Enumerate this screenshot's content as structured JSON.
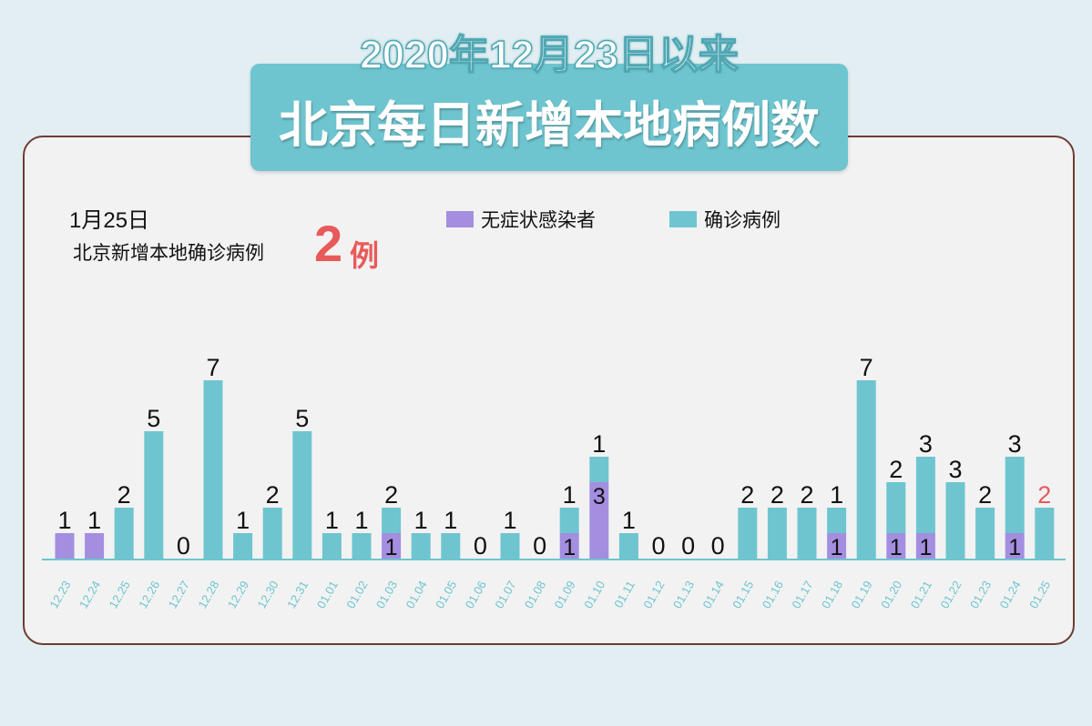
{
  "title": {
    "line1": "2020年12月23日以来",
    "line2": "北京每日新增本地病例数"
  },
  "info": {
    "date": "1月25日",
    "desc": "北京新增本地确诊病例",
    "number": "2",
    "unit": "例"
  },
  "colors": {
    "asymptomatic": "#a48ee0",
    "confirmed": "#6ec5cf",
    "highlight": "#e85a5a",
    "axis_label": "#6ec5cf"
  },
  "chart_data": {
    "type": "bar",
    "stacked": true,
    "categories": [
      "12.23",
      "12.24",
      "12.25",
      "12.26",
      "12.27",
      "12.28",
      "12.29",
      "12.30",
      "12.31",
      "01.01",
      "01.02",
      "01.03",
      "01.04",
      "01.05",
      "01.06",
      "01.07",
      "01.08",
      "01.09",
      "01.10",
      "01.11",
      "01.12",
      "01.13",
      "01.14",
      "01.15",
      "01.16",
      "01.17",
      "01.18",
      "01.19",
      "01.20",
      "01.21",
      "01.22",
      "01.23",
      "01.24",
      "01.25"
    ],
    "series": [
      {
        "name": "无症状感染者",
        "values": [
          1,
          1,
          0,
          0,
          0,
          0,
          0,
          0,
          0,
          0,
          0,
          1,
          0,
          0,
          0,
          0,
          0,
          1,
          3,
          0,
          0,
          0,
          0,
          0,
          0,
          0,
          1,
          0,
          1,
          1,
          0,
          0,
          1,
          0
        ]
      },
      {
        "name": "确诊病例",
        "values": [
          0,
          0,
          2,
          5,
          0,
          7,
          1,
          2,
          5,
          1,
          1,
          1,
          1,
          1,
          0,
          1,
          0,
          1,
          1,
          1,
          0,
          0,
          0,
          2,
          2,
          2,
          1,
          7,
          2,
          3,
          3,
          2,
          3,
          2
        ]
      }
    ],
    "top_labels": [
      "1",
      "1",
      "2",
      "5",
      "0",
      "7",
      "1",
      "2",
      "5",
      "1",
      "1",
      "2",
      "1",
      "1",
      "0",
      "1",
      "0",
      "1",
      "1",
      "1",
      "0",
      "0",
      "0",
      "2",
      "2",
      "2",
      "1",
      "7",
      "2",
      "3",
      "3",
      "2",
      "3",
      "2"
    ],
    "ylim": [
      0,
      8
    ]
  }
}
